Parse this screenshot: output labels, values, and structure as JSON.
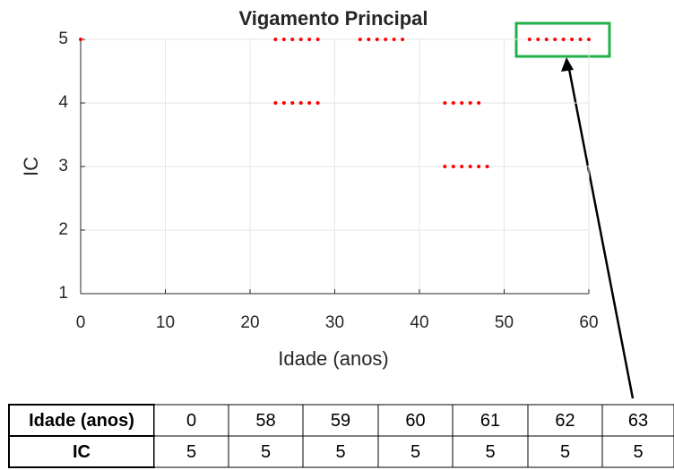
{
  "chart_data": {
    "type": "scatter",
    "title": "Vigamento Principal",
    "xlabel": "Idade (anos)",
    "ylabel": "IC",
    "series": [
      {
        "color": "#ff0000",
        "x": [
          0,
          23,
          24,
          25,
          26,
          27,
          28,
          33,
          34,
          35,
          36,
          37,
          38,
          53,
          54,
          55,
          56,
          57,
          58,
          59,
          60,
          23,
          24,
          25,
          26,
          27,
          28,
          43,
          44,
          45,
          46,
          47,
          43,
          44,
          45,
          46,
          47,
          48
        ],
        "values": [
          5,
          5,
          5,
          5,
          5,
          5,
          5,
          5,
          5,
          5,
          5,
          5,
          5,
          5,
          5,
          5,
          5,
          5,
          5,
          5,
          5,
          4,
          4,
          4,
          4,
          4,
          4,
          4,
          4,
          4,
          4,
          4,
          3,
          3,
          3,
          3,
          3,
          3
        ]
      }
    ],
    "xlim": [
      0,
      60
    ],
    "xticks": [
      0,
      10,
      20,
      30,
      40,
      50,
      60
    ],
    "ylim": [
      1,
      5
    ],
    "yticks": [
      1,
      2,
      3,
      4,
      5
    ],
    "grid": true
  },
  "table": {
    "rows": [
      [
        "Idade (anos)",
        "0",
        "58",
        "59",
        "60",
        "61",
        "62",
        "63"
      ],
      [
        "IC",
        "5",
        "5",
        "5",
        "5",
        "5",
        "5",
        "5"
      ]
    ]
  }
}
